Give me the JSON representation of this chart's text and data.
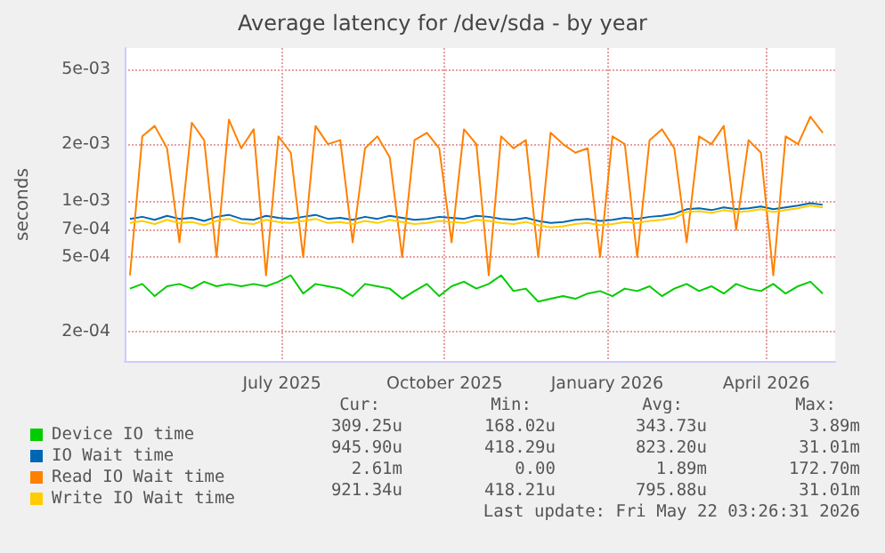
{
  "chart_data": {
    "type": "line",
    "title": "Average latency for /dev/sda - by year",
    "ylabel": "seconds",
    "log": "y",
    "grid": true,
    "legend": "bottom",
    "marker": "none",
    "line_style": "solid",
    "ylim": [
      0.00014,
      0.0065
    ],
    "yticks": [
      {
        "value": 0.0002,
        "label": "2e-04"
      },
      {
        "value": 0.0005,
        "label": "5e-04"
      },
      {
        "value": 0.0007,
        "label": "7e-04"
      },
      {
        "value": 0.001,
        "label": "1e-03"
      },
      {
        "value": 0.002,
        "label": "2e-03"
      },
      {
        "value": 0.005,
        "label": "5e-03"
      }
    ],
    "xlim": [
      "2025-04-17",
      "2026-05-24"
    ],
    "xticks": [
      {
        "value": "2025-07-15",
        "label": "July 2025"
      },
      {
        "value": "2025-10-15",
        "label": "October 2025"
      },
      {
        "value": "2026-01-15",
        "label": "January 2026"
      },
      {
        "value": "2026-04-15",
        "label": "April 2026"
      }
    ],
    "x": [
      "2025-04-20",
      "2025-04-27",
      "2025-05-04",
      "2025-05-11",
      "2025-05-18",
      "2025-05-25",
      "2025-06-01",
      "2025-06-08",
      "2025-06-15",
      "2025-06-22",
      "2025-06-29",
      "2025-07-06",
      "2025-07-13",
      "2025-07-20",
      "2025-07-27",
      "2025-08-03",
      "2025-08-10",
      "2025-08-17",
      "2025-08-24",
      "2025-08-31",
      "2025-09-07",
      "2025-09-14",
      "2025-09-21",
      "2025-09-28",
      "2025-10-05",
      "2025-10-12",
      "2025-10-19",
      "2025-10-26",
      "2025-11-02",
      "2025-11-09",
      "2025-11-16",
      "2025-11-23",
      "2025-11-30",
      "2025-12-07",
      "2025-12-14",
      "2025-12-21",
      "2025-12-28",
      "2026-01-04",
      "2026-01-11",
      "2026-01-18",
      "2026-01-25",
      "2026-02-01",
      "2026-02-08",
      "2026-02-15",
      "2026-02-22",
      "2026-03-01",
      "2026-03-08",
      "2026-03-15",
      "2026-03-22",
      "2026-03-29",
      "2026-04-05",
      "2026-04-12",
      "2026-04-19",
      "2026-04-26",
      "2026-05-03",
      "2026-05-10",
      "2026-05-17"
    ],
    "series": [
      {
        "name": "Device IO time",
        "color": "#00cc00",
        "values": [
          0.00034,
          0.00036,
          0.00031,
          0.00035,
          0.00036,
          0.00034,
          0.00037,
          0.00035,
          0.00036,
          0.00035,
          0.00036,
          0.00035,
          0.00037,
          0.0004,
          0.00032,
          0.00036,
          0.00035,
          0.00034,
          0.00031,
          0.00036,
          0.00035,
          0.00034,
          0.0003,
          0.00033,
          0.00036,
          0.00031,
          0.00035,
          0.00037,
          0.00034,
          0.00036,
          0.0004,
          0.00033,
          0.00034,
          0.00029,
          0.0003,
          0.00031,
          0.0003,
          0.00032,
          0.00033,
          0.00031,
          0.00034,
          0.00033,
          0.00035,
          0.00031,
          0.00034,
          0.00036,
          0.00033,
          0.00035,
          0.00032,
          0.00036,
          0.00034,
          0.00033,
          0.00036,
          0.00032,
          0.00035,
          0.00037,
          0.00032
        ]
      },
      {
        "name": "IO Wait time",
        "color": "#0066b3",
        "values": [
          0.0008,
          0.00082,
          0.00079,
          0.00083,
          0.0008,
          0.00081,
          0.00078,
          0.00082,
          0.00084,
          0.0008,
          0.00079,
          0.00083,
          0.00081,
          0.0008,
          0.00082,
          0.00084,
          0.0008,
          0.00081,
          0.00079,
          0.00082,
          0.0008,
          0.00083,
          0.00081,
          0.00079,
          0.0008,
          0.00082,
          0.00081,
          0.0008,
          0.00083,
          0.00082,
          0.0008,
          0.00079,
          0.00081,
          0.00078,
          0.00076,
          0.00077,
          0.00079,
          0.0008,
          0.00078,
          0.00079,
          0.00081,
          0.0008,
          0.00082,
          0.00083,
          0.00085,
          0.0009,
          0.00091,
          0.00089,
          0.00092,
          0.0009,
          0.00091,
          0.00093,
          0.0009,
          0.00092,
          0.00094,
          0.00097,
          0.00095
        ]
      },
      {
        "name": "Read IO Wait time",
        "color": "#ff8000",
        "values": [
          0.0004,
          0.0022,
          0.0025,
          0.0019,
          0.0006,
          0.0026,
          0.0021,
          0.0005,
          0.0027,
          0.0019,
          0.0024,
          0.0004,
          0.0022,
          0.0018,
          0.0005,
          0.0025,
          0.002,
          0.0021,
          0.0006,
          0.0019,
          0.0022,
          0.0017,
          0.0005,
          0.0021,
          0.0023,
          0.0019,
          0.0006,
          0.0024,
          0.002,
          0.0004,
          0.0022,
          0.0019,
          0.0021,
          0.0005,
          0.0023,
          0.002,
          0.0018,
          0.0019,
          0.0005,
          0.0022,
          0.002,
          0.0005,
          0.0021,
          0.0024,
          0.0019,
          0.0006,
          0.0022,
          0.002,
          0.0025,
          0.0007,
          0.0021,
          0.0018,
          0.0004,
          0.0022,
          0.002,
          0.0028,
          0.0023
        ]
      },
      {
        "name": "Write IO Wait time",
        "color": "#ffcc00",
        "values": [
          0.00076,
          0.00078,
          0.00075,
          0.00079,
          0.00076,
          0.00077,
          0.00074,
          0.00078,
          0.0008,
          0.00076,
          0.00075,
          0.00079,
          0.00077,
          0.00076,
          0.00078,
          0.0008,
          0.00076,
          0.00077,
          0.00075,
          0.00078,
          0.00076,
          0.00079,
          0.00077,
          0.00075,
          0.00076,
          0.00078,
          0.00077,
          0.00076,
          0.00079,
          0.00078,
          0.00076,
          0.00075,
          0.00077,
          0.00074,
          0.00072,
          0.00073,
          0.00075,
          0.00076,
          0.00074,
          0.00075,
          0.00077,
          0.00076,
          0.00078,
          0.00079,
          0.00081,
          0.00087,
          0.00088,
          0.00086,
          0.00089,
          0.00087,
          0.00088,
          0.0009,
          0.00087,
          0.00089,
          0.00091,
          0.00094,
          0.00092
        ]
      }
    ],
    "annotations": [
      "Cur:",
      "Min:",
      "Avg:",
      "Max:",
      "309.25u",
      "168.02u",
      "343.73u",
      "3.89m",
      "945.90u",
      "418.29u",
      "823.20u",
      "31.01m",
      "2.61m",
      "0.00",
      "1.89m",
      "172.70m",
      "921.34u",
      "418.21u",
      "795.88u",
      "31.01m",
      "Last update: Fri May 22 03:26:31 2026"
    ]
  }
}
